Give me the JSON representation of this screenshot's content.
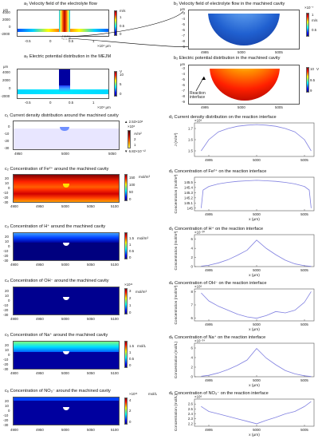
{
  "panels": {
    "a1": {
      "title": "a₁ Velocity field of the electrolyte flow",
      "unit": "m/s",
      "cbar_ticks": [
        "1",
        "0.5",
        "0"
      ],
      "yunit": "μm",
      "yticks": [
        "4000",
        "2000",
        "0",
        "-2000"
      ],
      "xticks": [
        "-0.5",
        "0",
        "0.5",
        "1"
      ],
      "xexp": "×10⁴ μm"
    },
    "b1": {
      "title": "b₁ Velocity field of electrolyte flow in the machined cavity",
      "unit": "m/s",
      "cbar_scale": "×10⁻⁷",
      "cbar_ticks": [
        "1",
        "0.5"
      ],
      "yunit": "μm",
      "yticks": [
        "-3",
        "-4",
        "-5",
        "-6",
        "-7",
        "-8",
        "-9"
      ],
      "xticks": [
        "4995",
        "5000",
        "5005"
      ]
    },
    "a2": {
      "title": "a₂ Electric potential distribution in the MEJM",
      "unit": "V",
      "cbar_ticks": [
        "10",
        "5",
        "0"
      ],
      "yunit": "μm",
      "yticks": [
        "4000",
        "2000",
        "0",
        "-2000"
      ],
      "xticks": [
        "-0.5",
        "0",
        "0.5",
        "1"
      ],
      "xexp": "×10⁴ μm"
    },
    "b2": {
      "title": "b₂ Electric potential distribution in the machined cavity",
      "unit": "V",
      "cbar_ticks": [
        "10",
        "9.5",
        "9"
      ],
      "yunit": "μm",
      "yticks": [
        "-3",
        "-4",
        "-5",
        "-6",
        "-7",
        "-8",
        "-9"
      ],
      "xticks": [
        "4995",
        "5000",
        "5005"
      ],
      "annotation": "Reaction\ninterface"
    },
    "c1": {
      "title": "c₁ Current density distribution around the machined cavity",
      "unit": "A/m²",
      "max": "▲ 2.53×10⁶",
      "min": "▼ 6.82×10⁻¹²",
      "cbar_scale": "×10⁶",
      "cbar_ticks": [
        "2",
        "1"
      ],
      "yticks": [
        "0",
        "-10",
        "-20",
        "-30"
      ],
      "xticks": [
        "4950",
        "5000",
        "5050"
      ]
    },
    "c2": {
      "title": "c₂ Concentration of Fe²⁺ around the machined cavity",
      "unit": "mol/m³",
      "cbar_ticks": [
        "150",
        "100",
        "50",
        "0"
      ],
      "yticks": [
        "20",
        "10",
        "0",
        "-10",
        "-20",
        "-30"
      ],
      "xticks": [
        "4900",
        "4950",
        "5000",
        "5050",
        "5100"
      ]
    },
    "c3": {
      "title": "c₃ Concentration of H⁺ around the machined cavity",
      "unit": "mol/m³",
      "cbar_ticks": [
        "1.5",
        "1",
        "0.5",
        "0"
      ],
      "yticks": [
        "20",
        "10",
        "0",
        "-10",
        "-20",
        "-30"
      ],
      "xticks": [
        "4900",
        "4950",
        "5000",
        "5050",
        "5100"
      ]
    },
    "c4": {
      "title": "c₄ Concentration of OH⁻ around the machined cavity",
      "unit": "mol/m³",
      "cbar_scale": "×10¹¹",
      "cbar_ticks": [
        "3",
        "2",
        "1",
        "0"
      ],
      "yticks": [
        "20",
        "10",
        "0",
        "-10",
        "-20",
        "-30"
      ],
      "xticks": [
        "4900",
        "4950",
        "5000",
        "5050",
        "5100"
      ]
    },
    "c5": {
      "title": "c₅ Concentration of Na⁺ around the machined cavity",
      "unit": "mol/L",
      "cbar_ticks": [
        "1.5",
        "1",
        "0.5",
        "0"
      ],
      "yticks": [
        "20",
        "10",
        "0",
        "-10",
        "-20",
        "-30"
      ],
      "xticks": [
        "4900",
        "4950",
        "5000",
        "5050",
        "5100"
      ]
    },
    "c6": {
      "title": "c₆ Concentration of NO₃⁻ around the machined cavity",
      "unit": "mol/L",
      "cbar_scale": "×10¹¹",
      "cbar_ticks": [
        "4",
        "2",
        "0"
      ],
      "yticks": [
        "20",
        "10",
        "0",
        "-10",
        "-20",
        "-30"
      ],
      "xticks": [
        "4900",
        "4950",
        "5000",
        "5050",
        "5100"
      ]
    }
  },
  "chart_data": [
    {
      "id": "d1",
      "type": "line",
      "title": "d₁ Current density distribution on the reaction interface",
      "ylabel": "J (A/m²)",
      "yscale": "×10⁶",
      "xlabel": "",
      "yticks": [
        "1.7",
        "1.6",
        "1.5"
      ],
      "xticks": [
        "4995",
        "5000",
        "5005"
      ],
      "xlim": [
        4993.5,
        5006
      ],
      "ylim": [
        1.45,
        1.75
      ],
      "series": [
        {
          "x": [
            4994.2,
            4995,
            4996,
            4997,
            4998,
            4999,
            5000,
            5001,
            5002,
            5003,
            5004,
            5005,
            5005.7
          ],
          "y": [
            1.5,
            1.6,
            1.67,
            1.7,
            1.72,
            1.73,
            1.735,
            1.73,
            1.72,
            1.7,
            1.67,
            1.6,
            1.5
          ]
        }
      ]
    },
    {
      "id": "d2",
      "type": "line",
      "title": "d₂ Concentration of Fe²⁺ on the reaction interface",
      "ylabel": "Concentration (mol/m³)",
      "xlabel": "x (μm)",
      "yticks": [
        "145.5",
        "145.4",
        "145.3",
        "145.2",
        "145.1",
        "145"
      ],
      "xticks": [
        "4995",
        "5000",
        "5005"
      ],
      "xlim": [
        4993.5,
        5006
      ],
      "ylim": [
        144.95,
        145.6
      ],
      "series": [
        {
          "x": [
            4994.2,
            4994.4,
            4995,
            4996,
            4997,
            4998,
            4999,
            5000,
            5001,
            5002,
            5003,
            5004,
            5005,
            5005.5,
            5005.7
          ],
          "y": [
            145.0,
            145.35,
            145.42,
            145.47,
            145.5,
            145.52,
            145.53,
            145.54,
            145.53,
            145.52,
            145.5,
            145.47,
            145.42,
            145.35,
            145.0
          ]
        }
      ]
    },
    {
      "id": "d3",
      "type": "line",
      "title": "d₃ Concentration of H⁺ on the reaction interface",
      "ylabel": "Concentration (mol/m³)",
      "yscale": "×10⁻³⁰",
      "xlabel": "x (μm)",
      "yticks": [
        "6",
        "4",
        "2",
        "0"
      ],
      "xticks": [
        "4995",
        "5000",
        "5005"
      ],
      "xlim": [
        4993.5,
        5006
      ],
      "ylim": [
        0,
        7
      ],
      "series": [
        {
          "x": [
            4994.2,
            4995,
            4996,
            4997,
            4998,
            4999,
            5000,
            5001,
            5002,
            5003,
            5004,
            5005,
            5005.7
          ],
          "y": [
            0.1,
            0.3,
            0.8,
            1.5,
            2.5,
            3.6,
            5.8,
            4.0,
            2.6,
            1.4,
            0.6,
            0.2,
            0.05
          ]
        }
      ]
    },
    {
      "id": "d4",
      "type": "line",
      "title": "d₄ Concentration of OH⁻ on the reaction interface",
      "ylabel": "Concentration (mol/m³)",
      "yscale": "×10⁶",
      "xlabel": "x (μm)",
      "yticks": [
        "8",
        "7",
        "6"
      ],
      "xticks": [
        "4995",
        "5000",
        "5005"
      ],
      "xlim": [
        4993.5,
        5006
      ],
      "ylim": [
        5.8,
        8.2
      ],
      "series": [
        {
          "x": [
            4994.2,
            4995,
            4996,
            4997,
            4998,
            4999,
            5000,
            5001,
            5002,
            5003,
            5004,
            5005,
            5005.7
          ],
          "y": [
            7.9,
            7.3,
            6.9,
            6.6,
            6.3,
            6.1,
            6.0,
            6.2,
            6.5,
            6.4,
            6.6,
            7.2,
            8.0
          ]
        }
      ]
    },
    {
      "id": "d5",
      "type": "line",
      "title": "d₅ Concentration of Na⁺ on the reaction interface",
      "ylabel": "Concentration (mol/L)",
      "yscale": "×10⁻²⁴",
      "xlabel": "x (μm)",
      "yticks": [
        "6",
        "4",
        "2",
        "0"
      ],
      "xticks": [
        "4995",
        "5000",
        "5005"
      ],
      "xlim": [
        4993.5,
        5006
      ],
      "ylim": [
        0,
        7
      ],
      "series": [
        {
          "x": [
            4994.2,
            4995,
            4996,
            4997,
            4998,
            4999,
            5000,
            5001,
            5002,
            5003,
            5004,
            5005,
            5005.7
          ],
          "y": [
            0.1,
            0.3,
            0.8,
            1.5,
            2.4,
            3.5,
            5.9,
            3.9,
            2.5,
            1.3,
            0.6,
            0.2,
            0.05
          ]
        }
      ]
    },
    {
      "id": "d6",
      "type": "line",
      "title": "d₆ Concentration of NO₃⁻ on the reaction interface",
      "ylabel": "Concentration (mol/L)",
      "yscale": "×10⁶",
      "xlabel": "x (μm)",
      "yticks": [
        "2.6",
        "2.5",
        "2.4",
        "2.3",
        "2.2"
      ],
      "xticks": [
        "4995",
        "5000",
        "5005"
      ],
      "xlim": [
        4993.5,
        5006
      ],
      "ylim": [
        2.15,
        2.7
      ],
      "series": [
        {
          "x": [
            4994.2,
            4995,
            4996,
            4997,
            4998,
            4999,
            5000,
            5001,
            5002,
            5003,
            5004,
            5005,
            5005.7
          ],
          "y": [
            2.55,
            2.45,
            2.4,
            2.35,
            2.3,
            2.25,
            2.2,
            2.27,
            2.33,
            2.4,
            2.45,
            2.55,
            2.65
          ]
        }
      ]
    }
  ]
}
